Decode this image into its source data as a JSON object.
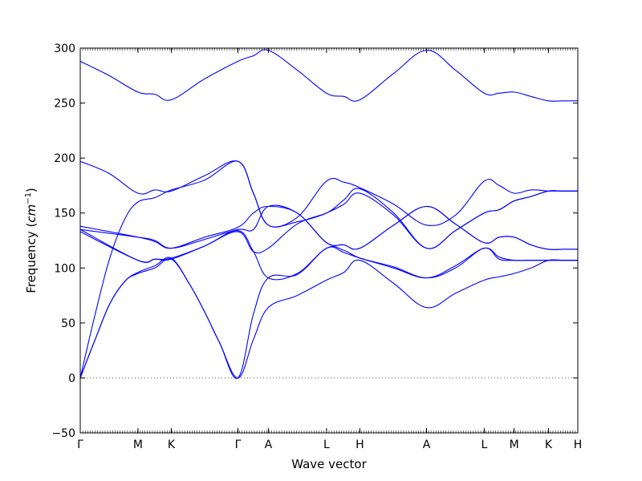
{
  "chart_data": {
    "type": "line",
    "xlabel": "Wave vector",
    "ylabel": "Frequency (cm⁻¹)",
    "ylabel_prefix": "Frequency (",
    "ylabel_unit": "cm",
    "ylabel_exp": "−1",
    "ylabel_suffix": ")",
    "ylim": [
      -50,
      300
    ],
    "yticks": [
      -50,
      0,
      50,
      100,
      150,
      200,
      250,
      300
    ],
    "ytick_labels": [
      "−50",
      "0",
      "50",
      "100",
      "150",
      "200",
      "250",
      "300"
    ],
    "x_path_labels": [
      "Γ",
      "M",
      "K",
      "Γ",
      "A",
      "L",
      "H",
      "A",
      "L",
      "M",
      "K",
      "H"
    ],
    "x_path_positions": [
      0,
      0.116,
      0.183,
      0.317,
      0.378,
      0.495,
      0.562,
      0.696,
      0.812,
      0.872,
      0.941,
      1.0
    ],
    "zero_line": true,
    "line_color": "#0000ff",
    "series": [
      {
        "x": [
          0,
          0.058,
          0.116,
          0.15,
          0.183,
          0.25,
          0.317,
          0.348,
          0.378,
          0.436,
          0.495,
          0.53,
          0.562,
          0.63,
          0.696,
          0.754,
          0.812,
          0.842,
          0.872,
          0.906,
          0.941,
          0.97,
          1.0
        ],
        "y": [
          288,
          275,
          260,
          258,
          253,
          272,
          288,
          293,
          298,
          280,
          259,
          256,
          253,
          277,
          298,
          280,
          259,
          259,
          260,
          256,
          252,
          252,
          252
        ]
      },
      {
        "x": [
          0,
          0.058,
          0.116,
          0.15,
          0.183,
          0.25,
          0.317,
          0.348,
          0.378,
          0.436,
          0.495,
          0.53,
          0.562,
          0.63,
          0.696,
          0.754,
          0.812,
          0.842,
          0.872,
          0.906,
          0.941,
          0.97,
          1.0
        ],
        "y": [
          197,
          186,
          168,
          171,
          170,
          184,
          197,
          168,
          139,
          146,
          179,
          178,
          173,
          158,
          139,
          148,
          179,
          175,
          168,
          171,
          170,
          170,
          170
        ]
      },
      {
        "x": [
          0,
          0.03,
          0.06,
          0.09,
          0.116,
          0.15,
          0.183,
          0.25,
          0.317,
          0.348,
          0.378,
          0.436,
          0.495,
          0.53,
          0.562,
          0.63,
          0.696,
          0.754,
          0.812,
          0.842,
          0.872,
          0.906,
          0.941,
          0.97,
          1.0
        ],
        "y": [
          0,
          58,
          110,
          145,
          160,
          164,
          171,
          180,
          197,
          168,
          139,
          142,
          150,
          162,
          172,
          150,
          118,
          134,
          150,
          153,
          161,
          165,
          170,
          170,
          170
        ]
      },
      {
        "x": [
          0,
          0.116,
          0.15,
          0.183,
          0.25,
          0.317,
          0.348,
          0.378,
          0.436,
          0.495,
          0.53,
          0.562,
          0.63,
          0.696,
          0.754,
          0.812,
          0.842,
          0.872,
          0.906,
          0.941,
          0.97,
          1.0
        ],
        "y": [
          138,
          128,
          124,
          118,
          128,
          137,
          150,
          156,
          150,
          123,
          121,
          118,
          139,
          156,
          140,
          123,
          128,
          128,
          121,
          117,
          117,
          117
        ]
      },
      {
        "x": [
          0,
          0.116,
          0.15,
          0.183,
          0.25,
          0.317,
          0.348,
          0.378,
          0.436,
          0.495,
          0.53,
          0.562,
          0.63,
          0.696,
          0.754,
          0.812,
          0.842,
          0.872,
          0.906,
          0.941,
          0.97,
          1.0
        ],
        "y": [
          135,
          128,
          125,
          118,
          126,
          135,
          135,
          156,
          150,
          123,
          121,
          118,
          139,
          156,
          140,
          123,
          128,
          128,
          121,
          117,
          117,
          117
        ]
      },
      {
        "x": [
          0,
          0.116,
          0.15,
          0.183,
          0.25,
          0.317,
          0.348,
          0.378,
          0.436,
          0.495,
          0.53,
          0.562,
          0.63,
          0.696,
          0.754,
          0.812,
          0.842,
          0.872,
          0.906,
          0.941,
          0.97,
          1.0
        ],
        "y": [
          135,
          107,
          108,
          109,
          120,
          134,
          115,
          91,
          95,
          118,
          116,
          109,
          101,
          91,
          100,
          118,
          108,
          107,
          107,
          107,
          107,
          107
        ]
      },
      {
        "x": [
          0,
          0.116,
          0.15,
          0.183,
          0.25,
          0.317,
          0.348,
          0.378,
          0.436,
          0.495,
          0.53,
          0.562,
          0.63,
          0.696,
          0.754,
          0.812,
          0.842,
          0.872,
          0.906,
          0.941,
          0.97,
          1.0
        ],
        "y": [
          133,
          107,
          108,
          108,
          120,
          133,
          115,
          118,
          140,
          150,
          158,
          168,
          148,
          118,
          134,
          150,
          153,
          161,
          165,
          170,
          170,
          170
        ]
      },
      {
        "x": [
          0,
          0.03,
          0.06,
          0.09,
          0.116,
          0.15,
          0.183,
          0.22,
          0.25,
          0.28,
          0.317,
          0.348,
          0.378,
          0.436,
          0.495,
          0.53,
          0.562,
          0.63,
          0.696,
          0.754,
          0.812,
          0.842,
          0.872,
          0.906,
          0.941,
          0.97,
          1.0
        ],
        "y": [
          0,
          35,
          68,
          88,
          95,
          100,
          108,
          85,
          60,
          32,
          0,
          35,
          64,
          75,
          89,
          96,
          107,
          86,
          64,
          77,
          89,
          92,
          95,
          100,
          107,
          107,
          107
        ]
      },
      {
        "x": [
          0,
          0.03,
          0.06,
          0.09,
          0.116,
          0.15,
          0.183,
          0.22,
          0.25,
          0.28,
          0.317,
          0.348,
          0.378,
          0.436,
          0.495,
          0.53,
          0.562,
          0.63,
          0.696,
          0.754,
          0.812,
          0.842,
          0.872,
          0.906,
          0.941,
          0.97,
          1.0
        ],
        "y": [
          0,
          35,
          68,
          88,
          96,
          102,
          109,
          85,
          60,
          32,
          0,
          58,
          91,
          94,
          118,
          114,
          109,
          100,
          91,
          102,
          118,
          110,
          107,
          107,
          107,
          107,
          107
        ]
      }
    ]
  }
}
